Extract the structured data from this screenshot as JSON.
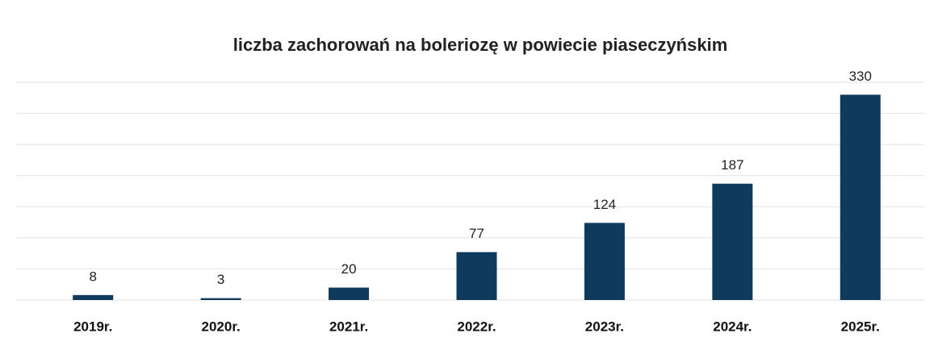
{
  "chart_data": {
    "type": "bar",
    "title": "liczba zachorowań na boleriozę w powiecie piaseczyńskim",
    "categories": [
      "2019r.",
      "2020r.",
      "2021r.",
      "2022r.",
      "2023r.",
      "2024r.",
      "2025r."
    ],
    "values": [
      8,
      3,
      20,
      77,
      124,
      187,
      330
    ],
    "color": "#0e3a5e",
    "ylim": [
      0,
      350
    ],
    "yticks": [
      0,
      50,
      100,
      150,
      200,
      250,
      300,
      350
    ],
    "grid": true
  }
}
